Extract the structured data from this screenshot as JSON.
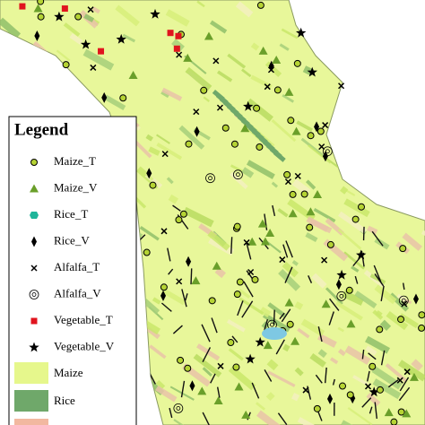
{
  "legend": {
    "title": "Legend",
    "symbols": [
      "Maize_T",
      "Maize_V",
      "Rice_T",
      "Rice_V",
      "Alfalfa_T",
      "Alfalfa_V",
      "Vegetable_T",
      "Vegetable_V"
    ],
    "areas": [
      "Maize",
      "Rice"
    ]
  }
}
